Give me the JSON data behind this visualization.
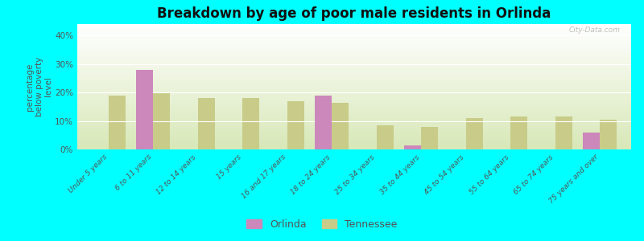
{
  "title": "Breakdown by age of poor male residents in Orlinda",
  "ylabel": "percentage\nbelow poverty\nlevel",
  "background_color": "#00FFFF",
  "plot_bg_top": "#ffffff",
  "plot_bg_bottom": "#d8e8b8",
  "categories": [
    "Under 5 years",
    "6 to 11 years",
    "12 to 14 years",
    "15 years",
    "16 and 17 years",
    "18 to 24 years",
    "25 to 34 years",
    "35 to 44 years",
    "45 to 54 years",
    "55 to 64 years",
    "65 to 74 years",
    "75 years and over"
  ],
  "orlinda_values": [
    null,
    28.0,
    null,
    null,
    null,
    19.0,
    null,
    1.5,
    null,
    null,
    null,
    6.0
  ],
  "tennessee_values": [
    19.0,
    20.0,
    18.0,
    18.0,
    17.0,
    16.5,
    8.5,
    8.0,
    11.0,
    11.5,
    11.5,
    10.5
  ],
  "orlinda_color": "#cc88bb",
  "tennessee_color": "#c8cc88",
  "ylim": [
    0,
    44
  ],
  "yticks": [
    0,
    10,
    20,
    30,
    40
  ],
  "yticklabels": [
    "0%",
    "10%",
    "20%",
    "30%",
    "40%"
  ],
  "bar_width": 0.38,
  "watermark": "City-Data.com",
  "title_fontsize": 12,
  "axis_label_fontsize": 7.5
}
